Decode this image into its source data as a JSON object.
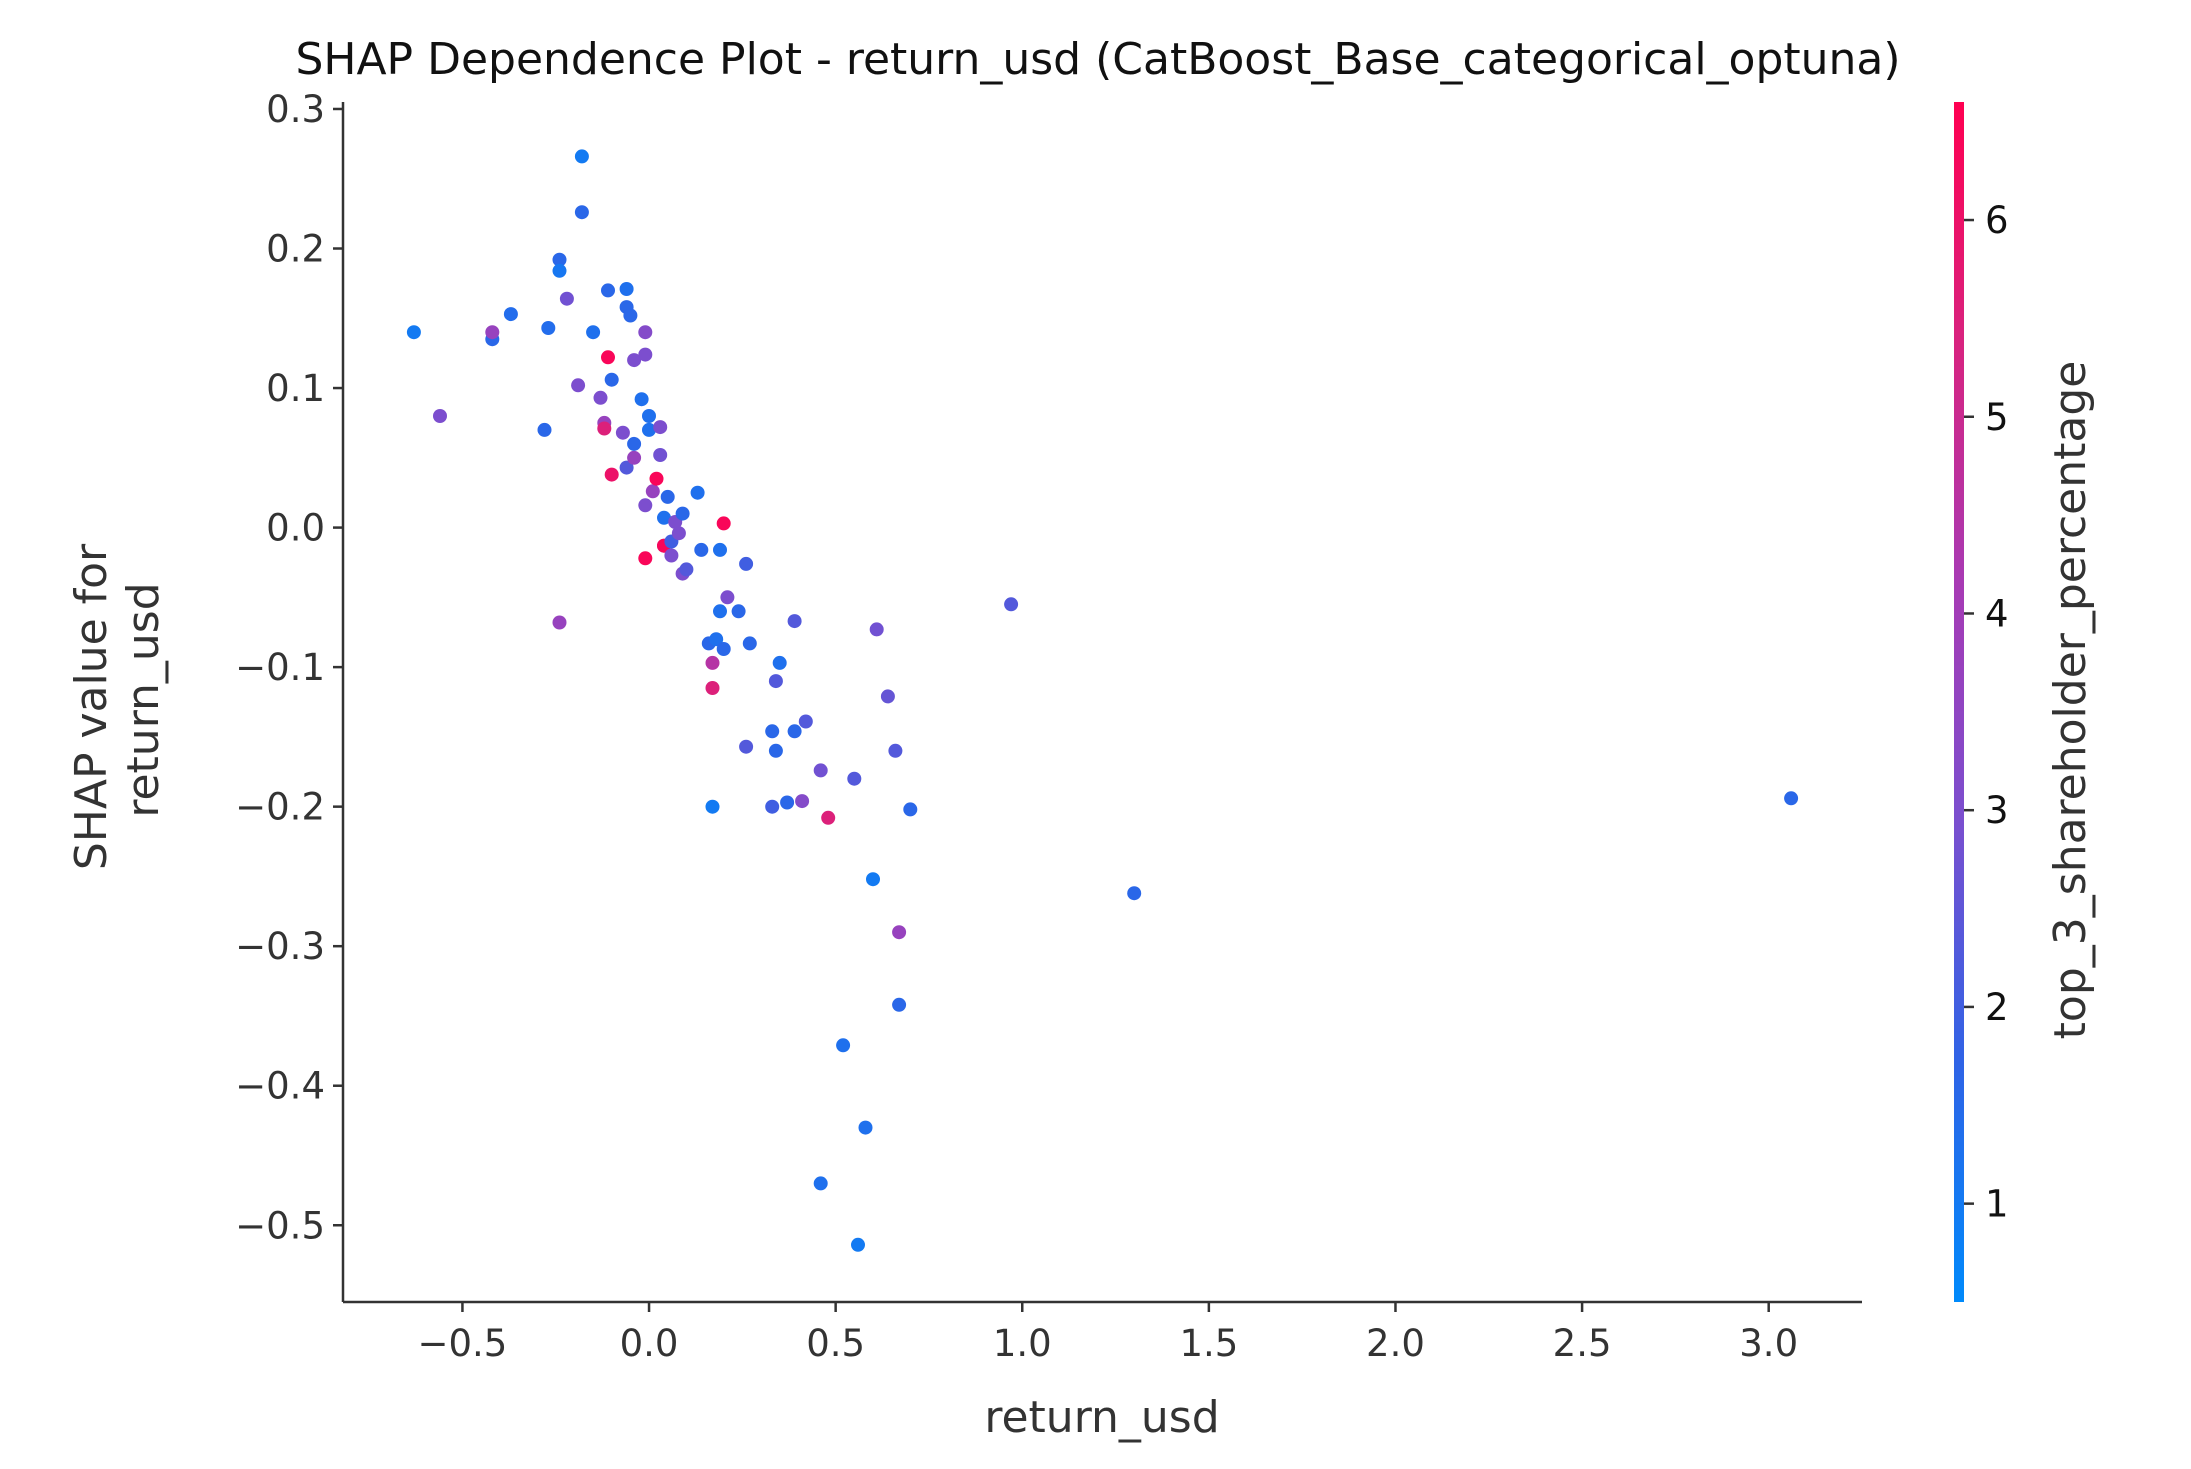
{
  "chart_data": {
    "type": "scatter",
    "title": "SHAP Dependence Plot - return_usd (CatBoost_Base_categorical_optuna)",
    "xlabel": "return_usd",
    "ylabel_lines": [
      "SHAP value for",
      "return_usd"
    ],
    "colorbar_label": "top_3_shareholder_percentage",
    "xlim": [
      -0.82,
      3.25
    ],
    "ylim": [
      -0.555,
      0.305
    ],
    "xticks": [
      -0.5,
      0.0,
      0.5,
      1.0,
      1.5,
      2.0,
      2.5,
      3.0
    ],
    "xtick_labels": [
      "−0.5",
      "0.0",
      "0.5",
      "1.0",
      "1.5",
      "2.0",
      "2.5",
      "3.0"
    ],
    "yticks": [
      0.3,
      0.2,
      0.1,
      0.0,
      -0.1,
      -0.2,
      -0.3,
      -0.4,
      -0.5
    ],
    "ytick_labels": [
      "0.3",
      "0.2",
      "0.1",
      "0.0",
      "−0.1",
      "−0.2",
      "−0.3",
      "−0.4",
      "−0.5"
    ],
    "colorbar": {
      "range": [
        0.5,
        6.6
      ],
      "ticks": [
        1,
        2,
        3,
        4,
        5,
        6
      ],
      "tick_labels": [
        "1",
        "2",
        "3",
        "4",
        "5",
        "6"
      ],
      "colors": [
        "#008afb",
        "#2f63e6",
        "#7a4fcf",
        "#a83ab4",
        "#d8237f",
        "#ff0051"
      ]
    },
    "grid": false,
    "points": [
      {
        "x": -0.63,
        "y": 0.14,
        "c": 1.0
      },
      {
        "x": -0.56,
        "y": 0.08,
        "c": 3.0
      },
      {
        "x": -0.42,
        "y": 0.135,
        "c": 1.6
      },
      {
        "x": -0.42,
        "y": 0.14,
        "c": 3.7
      },
      {
        "x": -0.37,
        "y": 0.153,
        "c": 1.4
      },
      {
        "x": -0.28,
        "y": 0.07,
        "c": 1.6
      },
      {
        "x": -0.27,
        "y": 0.143,
        "c": 1.4
      },
      {
        "x": -0.24,
        "y": 0.192,
        "c": 1.6
      },
      {
        "x": -0.24,
        "y": 0.184,
        "c": 1.1
      },
      {
        "x": -0.24,
        "y": -0.068,
        "c": 3.7
      },
      {
        "x": -0.22,
        "y": 0.164,
        "c": 2.8
      },
      {
        "x": -0.19,
        "y": 0.102,
        "c": 3.0
      },
      {
        "x": -0.18,
        "y": 0.266,
        "c": 1.0
      },
      {
        "x": -0.18,
        "y": 0.226,
        "c": 1.6
      },
      {
        "x": -0.15,
        "y": 0.14,
        "c": 1.3
      },
      {
        "x": -0.13,
        "y": 0.093,
        "c": 3.0
      },
      {
        "x": -0.12,
        "y": 0.075,
        "c": 3.7
      },
      {
        "x": -0.12,
        "y": 0.071,
        "c": 5.5
      },
      {
        "x": -0.11,
        "y": 0.122,
        "c": 6.4
      },
      {
        "x": -0.11,
        "y": 0.17,
        "c": 1.6
      },
      {
        "x": -0.1,
        "y": 0.106,
        "c": 1.6
      },
      {
        "x": -0.1,
        "y": 0.038,
        "c": 6.0
      },
      {
        "x": -0.07,
        "y": 0.068,
        "c": 3.0
      },
      {
        "x": -0.06,
        "y": 0.158,
        "c": 1.6
      },
      {
        "x": -0.06,
        "y": 0.171,
        "c": 1.3
      },
      {
        "x": -0.06,
        "y": 0.043,
        "c": 2.3
      },
      {
        "x": -0.05,
        "y": 0.152,
        "c": 1.6
      },
      {
        "x": -0.04,
        "y": 0.12,
        "c": 3.0
      },
      {
        "x": -0.04,
        "y": 0.05,
        "c": 3.7
      },
      {
        "x": -0.04,
        "y": 0.06,
        "c": 1.6
      },
      {
        "x": -0.02,
        "y": 0.092,
        "c": 1.3
      },
      {
        "x": -0.01,
        "y": 0.14,
        "c": 3.2
      },
      {
        "x": -0.01,
        "y": 0.124,
        "c": 3.0
      },
      {
        "x": -0.01,
        "y": 0.016,
        "c": 3.0
      },
      {
        "x": -0.01,
        "y": -0.022,
        "c": 6.4
      },
      {
        "x": 0.0,
        "y": 0.08,
        "c": 1.3
      },
      {
        "x": 0.0,
        "y": 0.07,
        "c": 1.3
      },
      {
        "x": 0.01,
        "y": 0.026,
        "c": 3.7
      },
      {
        "x": 0.02,
        "y": 0.035,
        "c": 6.4
      },
      {
        "x": 0.03,
        "y": 0.072,
        "c": 3.0
      },
      {
        "x": 0.03,
        "y": 0.052,
        "c": 2.8
      },
      {
        "x": 0.04,
        "y": 0.007,
        "c": 1.3
      },
      {
        "x": 0.04,
        "y": -0.013,
        "c": 3.7
      },
      {
        "x": 0.04,
        "y": -0.013,
        "c": 6.4
      },
      {
        "x": 0.05,
        "y": 0.022,
        "c": 1.6
      },
      {
        "x": 0.06,
        "y": -0.01,
        "c": 2.0
      },
      {
        "x": 0.06,
        "y": -0.02,
        "c": 3.0
      },
      {
        "x": 0.07,
        "y": 0.004,
        "c": 3.0
      },
      {
        "x": 0.08,
        "y": -0.004,
        "c": 3.0
      },
      {
        "x": 0.09,
        "y": 0.01,
        "c": 1.6
      },
      {
        "x": 0.09,
        "y": -0.033,
        "c": 3.0
      },
      {
        "x": 0.1,
        "y": -0.03,
        "c": 2.3
      },
      {
        "x": 0.13,
        "y": 0.025,
        "c": 1.3
      },
      {
        "x": 0.14,
        "y": -0.016,
        "c": 1.6
      },
      {
        "x": 0.16,
        "y": -0.083,
        "c": 1.6
      },
      {
        "x": 0.17,
        "y": -0.097,
        "c": 4.5
      },
      {
        "x": 0.17,
        "y": -0.115,
        "c": 5.5
      },
      {
        "x": 0.17,
        "y": -0.2,
        "c": 1.0
      },
      {
        "x": 0.18,
        "y": -0.08,
        "c": 1.3
      },
      {
        "x": 0.19,
        "y": -0.06,
        "c": 1.3
      },
      {
        "x": 0.19,
        "y": -0.016,
        "c": 1.3
      },
      {
        "x": 0.2,
        "y": 0.003,
        "c": 6.4
      },
      {
        "x": 0.2,
        "y": -0.087,
        "c": 1.6
      },
      {
        "x": 0.21,
        "y": -0.05,
        "c": 3.0
      },
      {
        "x": 0.24,
        "y": -0.06,
        "c": 1.6
      },
      {
        "x": 0.26,
        "y": -0.026,
        "c": 2.0
      },
      {
        "x": 0.26,
        "y": -0.157,
        "c": 2.3
      },
      {
        "x": 0.27,
        "y": -0.083,
        "c": 1.6
      },
      {
        "x": 0.33,
        "y": -0.146,
        "c": 1.6
      },
      {
        "x": 0.33,
        "y": -0.2,
        "c": 2.0
      },
      {
        "x": 0.34,
        "y": -0.11,
        "c": 2.3
      },
      {
        "x": 0.34,
        "y": -0.16,
        "c": 1.6
      },
      {
        "x": 0.35,
        "y": -0.097,
        "c": 1.3
      },
      {
        "x": 0.37,
        "y": -0.197,
        "c": 1.6
      },
      {
        "x": 0.39,
        "y": -0.146,
        "c": 1.6
      },
      {
        "x": 0.39,
        "y": -0.067,
        "c": 2.3
      },
      {
        "x": 0.41,
        "y": -0.196,
        "c": 3.2
      },
      {
        "x": 0.42,
        "y": -0.139,
        "c": 2.3
      },
      {
        "x": 0.46,
        "y": -0.174,
        "c": 2.8
      },
      {
        "x": 0.46,
        "y": -0.47,
        "c": 1.3
      },
      {
        "x": 0.48,
        "y": -0.208,
        "c": 5.5
      },
      {
        "x": 0.52,
        "y": -0.371,
        "c": 1.3
      },
      {
        "x": 0.55,
        "y": -0.18,
        "c": 2.3
      },
      {
        "x": 0.56,
        "y": -0.514,
        "c": 1.0
      },
      {
        "x": 0.58,
        "y": -0.43,
        "c": 1.3
      },
      {
        "x": 0.6,
        "y": -0.252,
        "c": 1.0
      },
      {
        "x": 0.61,
        "y": -0.073,
        "c": 2.8
      },
      {
        "x": 0.64,
        "y": -0.121,
        "c": 2.6
      },
      {
        "x": 0.66,
        "y": -0.16,
        "c": 2.3
      },
      {
        "x": 0.67,
        "y": -0.29,
        "c": 3.7
      },
      {
        "x": 0.67,
        "y": -0.342,
        "c": 1.6
      },
      {
        "x": 0.7,
        "y": -0.202,
        "c": 1.6
      },
      {
        "x": 0.97,
        "y": -0.055,
        "c": 2.3
      },
      {
        "x": 1.3,
        "y": -0.262,
        "c": 1.6
      },
      {
        "x": 3.06,
        "y": -0.194,
        "c": 1.6
      }
    ]
  }
}
